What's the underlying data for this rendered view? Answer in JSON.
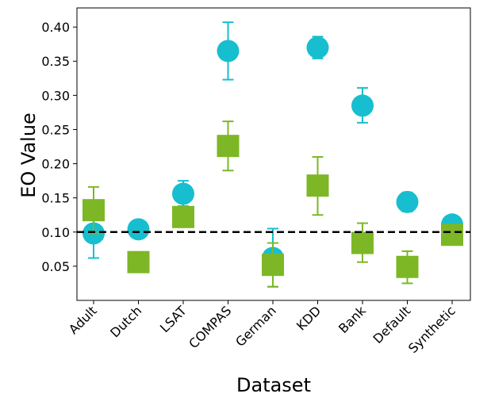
{
  "chart_data": {
    "type": "scatter",
    "title": "",
    "xlabel": "Dataset",
    "ylabel": "EO Value",
    "categories": [
      "Adult",
      "Dutch",
      "LSAT",
      "COMPAS",
      "German",
      "KDD",
      "Bank",
      "Default",
      "Synthetic"
    ],
    "ylim": [
      0.0,
      0.428
    ],
    "yticks": [
      0.05,
      0.1,
      0.15,
      0.2,
      0.25,
      0.3,
      0.35,
      0.4
    ],
    "ytick_labels": [
      "0.05",
      "0.10",
      "0.15",
      "0.20",
      "0.25",
      "0.30",
      "0.35",
      "0.40"
    ],
    "reference_line": {
      "y": 0.1,
      "style": "dashed",
      "color": "#000000"
    },
    "series": [
      {
        "name": "circle-series",
        "marker": "circle",
        "color": "#17becf",
        "values": [
          0.098,
          0.104,
          0.156,
          0.365,
          0.062,
          0.37,
          0.285,
          0.144,
          0.111
        ],
        "err_low": [
          0.062,
          null,
          0.138,
          0.323,
          0.02,
          0.354,
          0.26,
          0.13,
          null
        ],
        "err_high": [
          0.136,
          null,
          0.175,
          0.407,
          0.105,
          0.386,
          0.311,
          0.158,
          null
        ]
      },
      {
        "name": "square-series",
        "marker": "square",
        "color": "#7db726",
        "values": [
          0.132,
          0.056,
          0.122,
          0.226,
          0.052,
          0.168,
          0.084,
          0.049,
          0.096
        ],
        "err_low": [
          0.098,
          null,
          0.108,
          0.19,
          0.02,
          0.125,
          0.056,
          0.025,
          null
        ],
        "err_high": [
          0.166,
          null,
          0.136,
          0.262,
          0.084,
          0.21,
          0.113,
          0.072,
          null
        ]
      }
    ]
  }
}
